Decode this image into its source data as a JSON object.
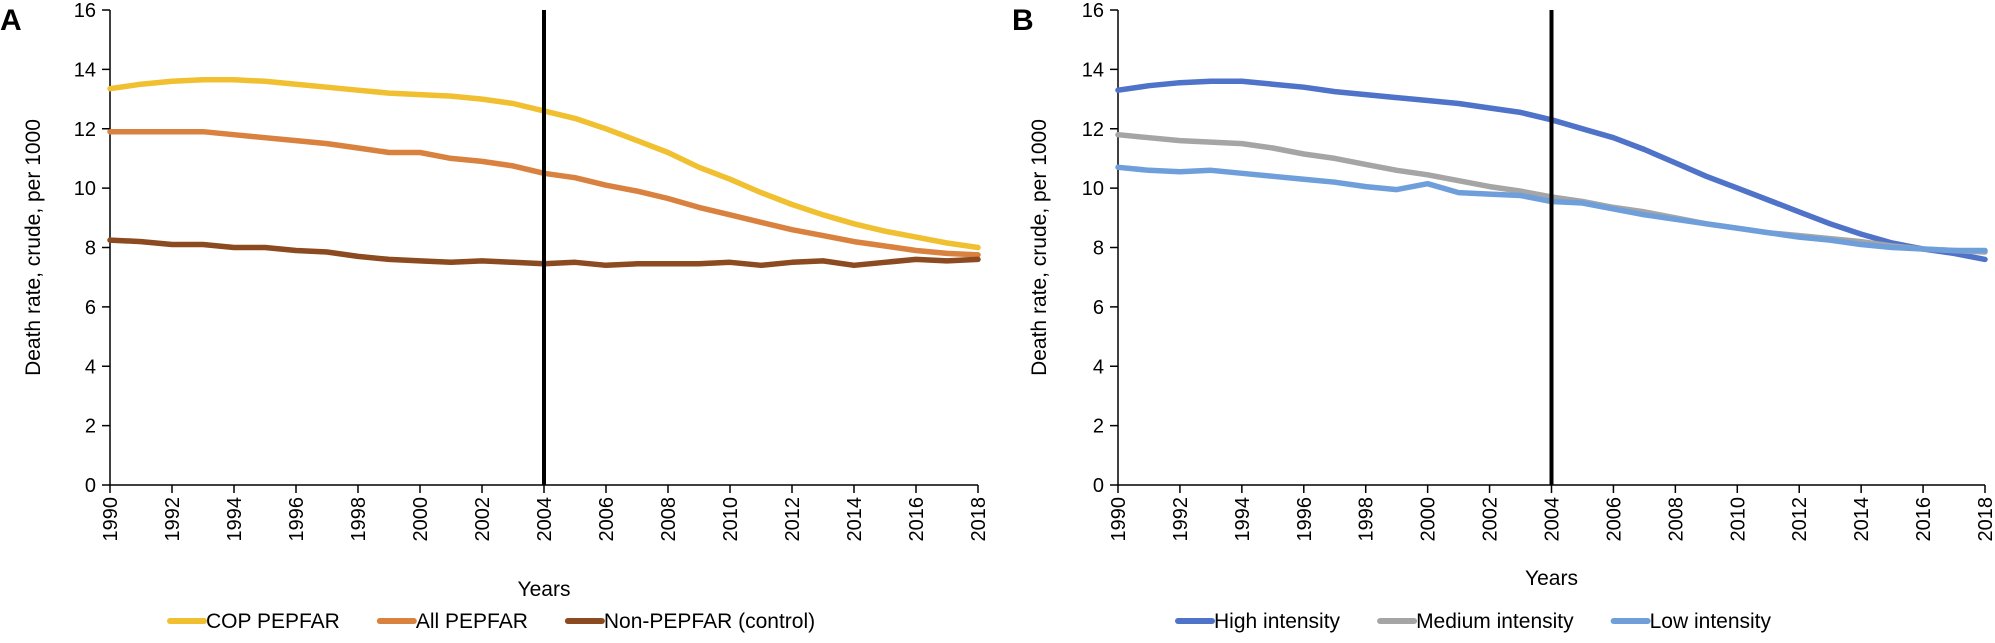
{
  "chart_data": [
    {
      "type": "line",
      "panel_label": "A",
      "xlabel": "Years",
      "ylabel": "Death rate, crude, per 1000",
      "xlim": [
        1990,
        2018
      ],
      "ylim": [
        0,
        16
      ],
      "x_ticks": [
        "1990",
        "1992",
        "1994",
        "1996",
        "1998",
        "2000",
        "2002",
        "2004",
        "2006",
        "2008",
        "2010",
        "2012",
        "2014",
        "2016",
        "2018"
      ],
      "y_ticks": [
        "0",
        "2",
        "4",
        "6",
        "8",
        "10",
        "12",
        "14",
        "16"
      ],
      "grid": false,
      "legend_position": "bottom",
      "vertical_marker_x": 2004,
      "x": [
        1990,
        1991,
        1992,
        1993,
        1994,
        1995,
        1996,
        1997,
        1998,
        1999,
        2000,
        2001,
        2002,
        2003,
        2004,
        2005,
        2006,
        2007,
        2008,
        2009,
        2010,
        2011,
        2012,
        2013,
        2014,
        2015,
        2016,
        2017,
        2018
      ],
      "series": [
        {
          "name": "COP PEPFAR",
          "color": "#F0C030",
          "values": [
            13.35,
            13.5,
            13.6,
            13.65,
            13.65,
            13.6,
            13.5,
            13.4,
            13.3,
            13.2,
            13.15,
            13.1,
            13.0,
            12.85,
            12.6,
            12.35,
            12.0,
            11.6,
            11.2,
            10.7,
            10.3,
            9.85,
            9.45,
            9.1,
            8.8,
            8.55,
            8.35,
            8.15,
            8.0
          ]
        },
        {
          "name": "All PEPFAR",
          "color": "#D9813E",
          "values": [
            11.9,
            11.9,
            11.9,
            11.9,
            11.8,
            11.7,
            11.6,
            11.5,
            11.35,
            11.2,
            11.2,
            11.0,
            10.9,
            10.75,
            10.5,
            10.35,
            10.1,
            9.9,
            9.65,
            9.35,
            9.1,
            8.85,
            8.6,
            8.4,
            8.2,
            8.05,
            7.9,
            7.8,
            7.75
          ]
        },
        {
          "name": "Non-PEPFAR (control)",
          "color": "#8B4A1F",
          "values": [
            8.25,
            8.2,
            8.1,
            8.1,
            8.0,
            8.0,
            7.9,
            7.85,
            7.7,
            7.6,
            7.55,
            7.5,
            7.55,
            7.5,
            7.45,
            7.5,
            7.4,
            7.45,
            7.45,
            7.45,
            7.5,
            7.4,
            7.5,
            7.55,
            7.4,
            7.5,
            7.6,
            7.55,
            7.6
          ]
        }
      ]
    },
    {
      "type": "line",
      "panel_label": "B",
      "xlabel": "Years",
      "ylabel": "Death rate, crude, per 1000",
      "xlim": [
        1990,
        2018
      ],
      "ylim": [
        0,
        16
      ],
      "x_ticks": [
        "1990",
        "1992",
        "1994",
        "1996",
        "1998",
        "2000",
        "2002",
        "2004",
        "2006",
        "2008",
        "2010",
        "2012",
        "2014",
        "2016",
        "2018"
      ],
      "y_ticks": [
        "0",
        "2",
        "4",
        "6",
        "8",
        "10",
        "12",
        "14",
        "16"
      ],
      "grid": false,
      "legend_position": "bottom",
      "vertical_marker_x": 2004,
      "x": [
        1990,
        1991,
        1992,
        1993,
        1994,
        1995,
        1996,
        1997,
        1998,
        1999,
        2000,
        2001,
        2002,
        2003,
        2004,
        2005,
        2006,
        2007,
        2008,
        2009,
        2010,
        2011,
        2012,
        2013,
        2014,
        2015,
        2016,
        2017,
        2018
      ],
      "series": [
        {
          "name": "High intensity",
          "color": "#4F73C8",
          "values": [
            13.3,
            13.45,
            13.55,
            13.6,
            13.6,
            13.5,
            13.4,
            13.25,
            13.15,
            13.05,
            12.95,
            12.85,
            12.7,
            12.55,
            12.3,
            12.0,
            11.7,
            11.3,
            10.85,
            10.4,
            10.0,
            9.6,
            9.2,
            8.8,
            8.45,
            8.15,
            7.95,
            7.8,
            7.6
          ]
        },
        {
          "name": "Medium intensity",
          "color": "#A5A5A5",
          "values": [
            11.8,
            11.7,
            11.6,
            11.55,
            11.5,
            11.35,
            11.15,
            11.0,
            10.8,
            10.6,
            10.45,
            10.25,
            10.05,
            9.9,
            9.7,
            9.55,
            9.35,
            9.2,
            9.0,
            8.8,
            8.65,
            8.5,
            8.4,
            8.3,
            8.2,
            8.05,
            7.95,
            7.9,
            7.85
          ]
        },
        {
          "name": "Low intensity",
          "color": "#6F9FDA",
          "values": [
            10.7,
            10.6,
            10.55,
            10.6,
            10.5,
            10.4,
            10.3,
            10.2,
            10.05,
            9.95,
            10.15,
            9.85,
            9.8,
            9.75,
            9.55,
            9.5,
            9.3,
            9.1,
            8.95,
            8.8,
            8.65,
            8.5,
            8.35,
            8.25,
            8.1,
            8.0,
            7.95,
            7.9,
            7.9
          ]
        }
      ]
    }
  ]
}
